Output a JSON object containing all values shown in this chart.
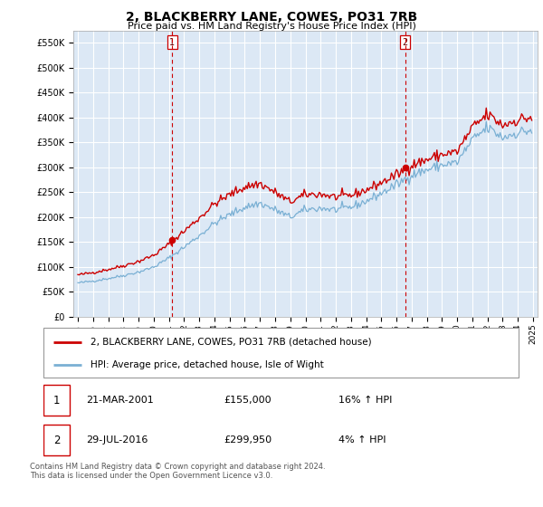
{
  "title": "2, BLACKBERRY LANE, COWES, PO31 7RB",
  "subtitle": "Price paid vs. HM Land Registry's House Price Index (HPI)",
  "ylim": [
    0,
    575000
  ],
  "yticks": [
    0,
    50000,
    100000,
    150000,
    200000,
    250000,
    300000,
    350000,
    400000,
    450000,
    500000,
    550000
  ],
  "ytick_labels": [
    "£0",
    "£50K",
    "£100K",
    "£150K",
    "£200K",
    "£250K",
    "£300K",
    "£350K",
    "£400K",
    "£450K",
    "£500K",
    "£550K"
  ],
  "xlim_start": 1994.7,
  "xlim_end": 2025.3,
  "transactions": [
    {
      "num": 1,
      "date": "21-MAR-2001",
      "price": 155000,
      "year": 2001.22
    },
    {
      "num": 2,
      "date": "29-JUL-2016",
      "price": 299950,
      "year": 2016.57
    }
  ],
  "legend_line1": "2, BLACKBERRY LANE, COWES, PO31 7RB (detached house)",
  "legend_line2": "HPI: Average price, detached house, Isle of Wight",
  "footer": "Contains HM Land Registry data © Crown copyright and database right 2024.\nThis data is licensed under the Open Government Licence v3.0.",
  "table_rows": [
    {
      "num": 1,
      "date": "21-MAR-2001",
      "price": "£155,000",
      "hpi": "16% ↑ HPI"
    },
    {
      "num": 2,
      "date": "29-JUL-2016",
      "price": "£299,950",
      "hpi": "4% ↑ HPI"
    }
  ],
  "line_color_red": "#cc0000",
  "line_color_blue": "#7ab0d4",
  "bg_color": "#dce8f5",
  "grid_color": "#ffffff",
  "vline_color": "#cc0000",
  "title_fontsize": 10,
  "subtitle_fontsize": 8,
  "tick_fontsize": 7,
  "legend_fontsize": 7.5,
  "table_fontsize": 8,
  "footer_fontsize": 6
}
